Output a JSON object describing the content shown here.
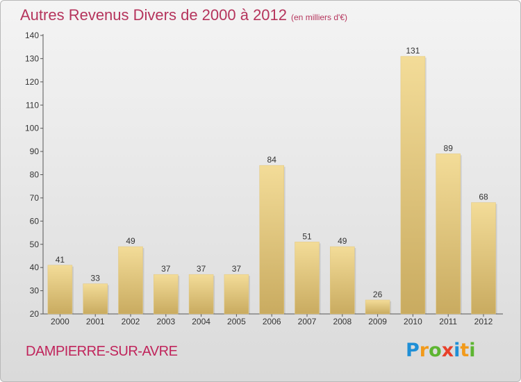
{
  "header": {
    "title": "Autres Revenus Divers de 2000 à 2012",
    "unit": "(en milliers d'€)"
  },
  "footer": {
    "city": "DAMPIERRE-SUR-AVRE",
    "brand": "Proxiti",
    "brand_letters": [
      "P",
      "r",
      "o",
      "x",
      "i",
      "t",
      "i"
    ],
    "brand_colors": [
      "#1f8fd6",
      "#f29a1a",
      "#5db531",
      "#e8402a",
      "#1f8fd6",
      "#f29a1a",
      "#5db531"
    ]
  },
  "chart_data": {
    "type": "bar",
    "categories": [
      "2000",
      "2001",
      "2002",
      "2003",
      "2004",
      "2005",
      "2006",
      "2007",
      "2008",
      "2009",
      "2010",
      "2011",
      "2012"
    ],
    "values": [
      41,
      33,
      49,
      37,
      37,
      37,
      84,
      51,
      49,
      26,
      131,
      89,
      68
    ],
    "ylim": [
      20,
      140
    ],
    "yticks": [
      20,
      30,
      40,
      50,
      60,
      70,
      80,
      90,
      100,
      110,
      120,
      130,
      140
    ],
    "grid": false,
    "colors": {
      "bar_light": "#f3dc98",
      "bar_dark": "#c9ab60",
      "title": "#b5345c",
      "city": "#c0245b"
    }
  }
}
